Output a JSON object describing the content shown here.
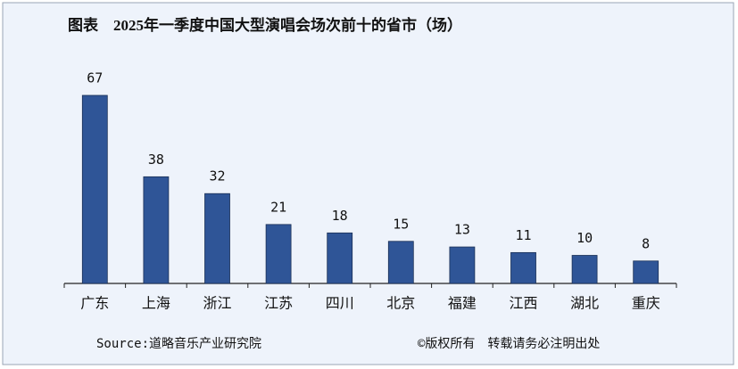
{
  "chart_data": {
    "type": "bar",
    "title": "图表　2025年一季度中国大型演唱会场次前十的省市（场）",
    "categories": [
      "广东",
      "上海",
      "浙江",
      "江苏",
      "四川",
      "北京",
      "福建",
      "江西",
      "湖北",
      "重庆"
    ],
    "values": [
      67,
      38,
      32,
      21,
      18,
      15,
      13,
      11,
      10,
      8
    ],
    "color": "#2f5597",
    "source": "Source:道略音乐产业研究院",
    "copyright": "©版权所有　转载请务必注明出处"
  }
}
